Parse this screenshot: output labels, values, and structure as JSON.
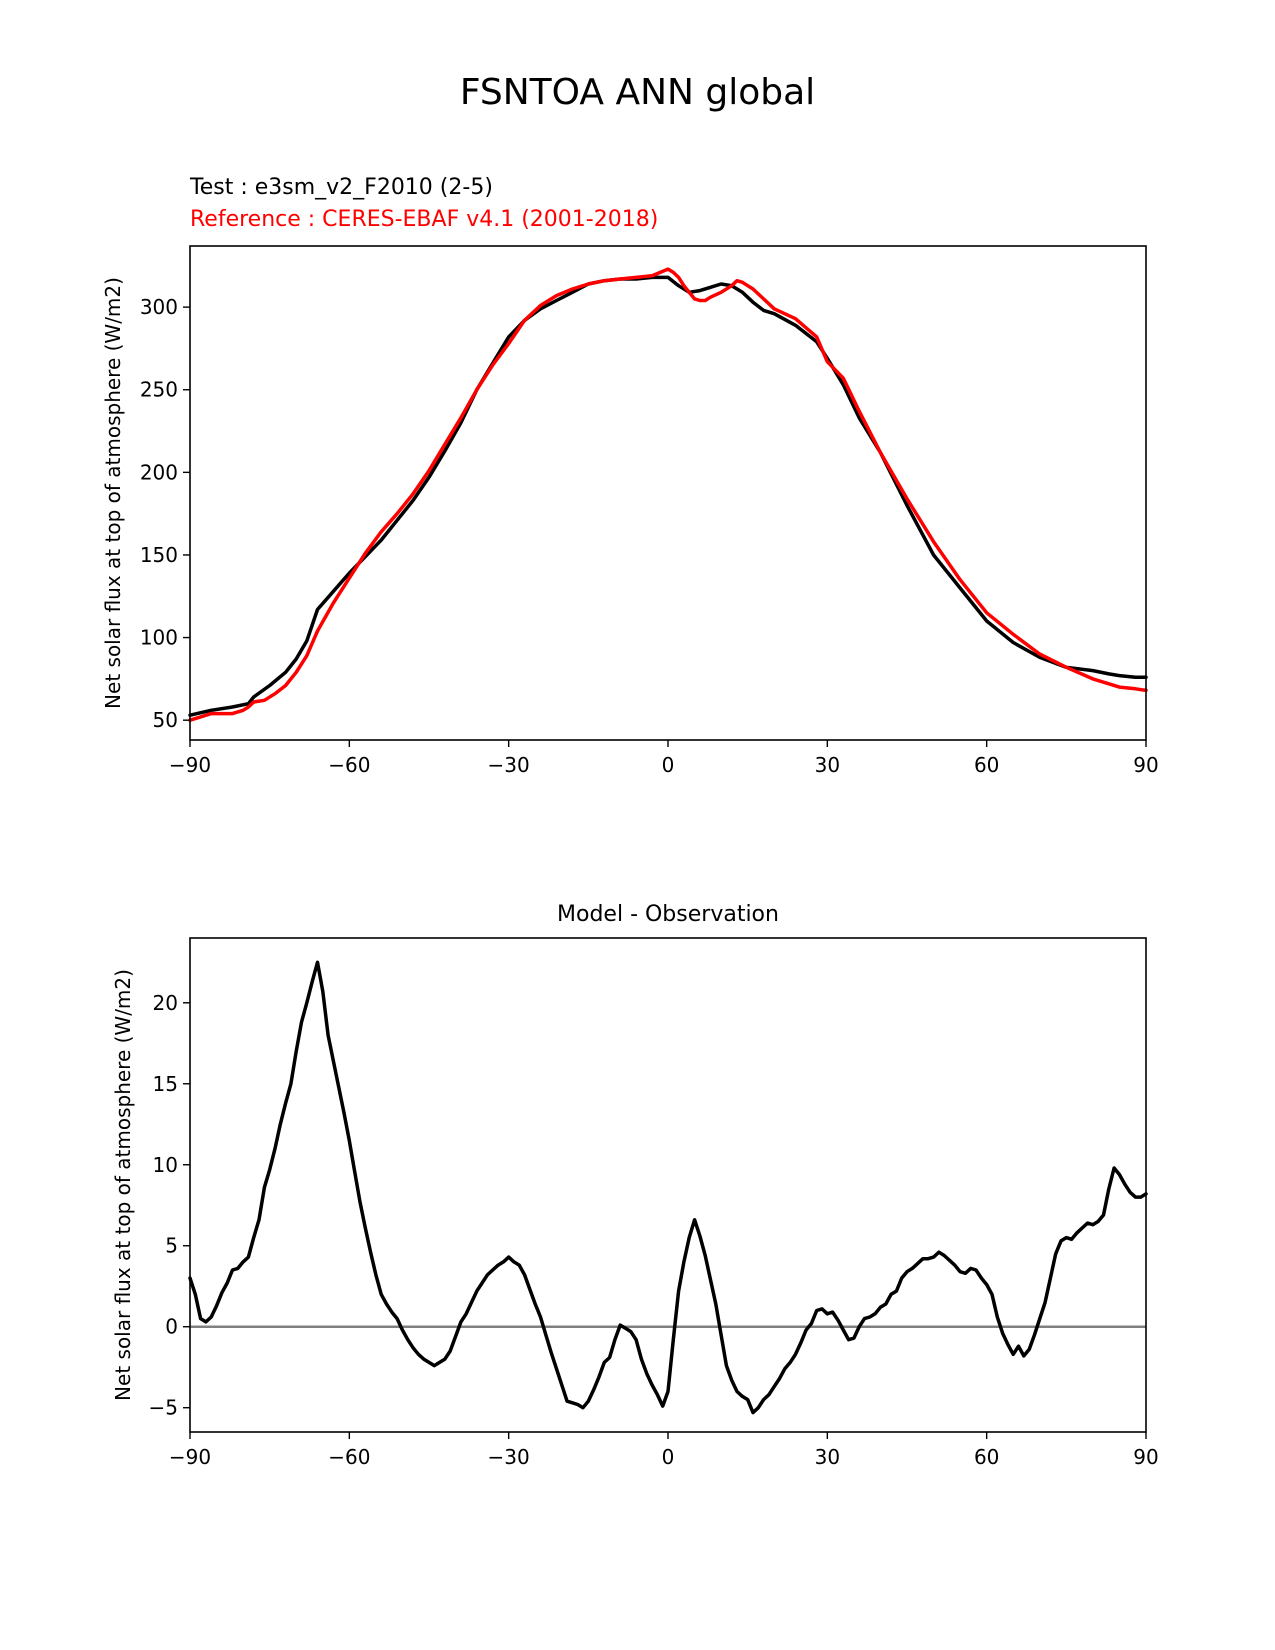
{
  "figure": {
    "title": "FSNTOA ANN global",
    "top_title_test": "Test : e3sm_v2_F2010 (2-5)",
    "top_title_ref": "Reference : CERES-EBAF v4.1 (2001-2018)",
    "bottom_title": "Model - Observation"
  },
  "colors": {
    "test": "#000000",
    "reference": "#ff0000",
    "zero_line": "#808080"
  },
  "chart_data": [
    {
      "type": "line",
      "xlim": [
        -90,
        90
      ],
      "ylim": [
        38,
        337
      ],
      "xticks": [
        -90,
        -60,
        -30,
        0,
        30,
        60,
        90
      ],
      "xtick_labels": [
        "−90",
        "−60",
        "−30",
        "0",
        "30",
        "60",
        "90"
      ],
      "yticks": [
        50,
        100,
        150,
        200,
        250,
        300
      ],
      "ylabel": "Net solar flux at top of atmosphere (W/m2)",
      "series": [
        {
          "name": "Test : e3sm_v2_F2010 (2-5)",
          "color": "#000000",
          "x": [
            -90,
            -86,
            -82,
            -79,
            -78,
            -75,
            -72,
            -70,
            -68,
            -66,
            -63,
            -60,
            -57,
            -54,
            -51,
            -48,
            -45,
            -42,
            -39,
            -36,
            -33,
            -30,
            -27,
            -24,
            -21,
            -18,
            -15,
            -12,
            -9,
            -6,
            -3,
            0,
            2,
            4,
            6,
            8,
            10,
            12,
            14,
            16,
            18,
            20,
            24,
            28,
            30,
            33,
            36,
            40,
            45,
            50,
            55,
            60,
            65,
            70,
            75,
            80,
            83,
            85,
            88,
            90
          ],
          "y": [
            53,
            56,
            58,
            60,
            64,
            71,
            79,
            87,
            98,
            117,
            128,
            139,
            149,
            159,
            171,
            183,
            197,
            213,
            230,
            250,
            266,
            282,
            292,
            299,
            304,
            309,
            314,
            316,
            317,
            317,
            318,
            318,
            313,
            309,
            310,
            312,
            314,
            313,
            309,
            303,
            298,
            296,
            289,
            279,
            269,
            253,
            233,
            212,
            180,
            150,
            130,
            110,
            97,
            88,
            82,
            80,
            78,
            77,
            76,
            76
          ]
        },
        {
          "name": "Reference : CERES-EBAF v4.1 (2001-2018)",
          "color": "#ff0000",
          "x": [
            -90,
            -88,
            -86,
            -84,
            -82,
            -80,
            -79,
            -78,
            -76,
            -74,
            -72,
            -70,
            -68,
            -66,
            -63,
            -60,
            -57,
            -54,
            -51,
            -48,
            -45,
            -42,
            -39,
            -36,
            -33,
            -30,
            -27,
            -24,
            -21,
            -18,
            -15,
            -12,
            -9,
            -6,
            -3,
            0,
            1,
            2,
            3,
            4,
            5,
            6,
            7,
            8,
            10,
            12,
            13,
            14,
            16,
            18,
            20,
            24,
            28,
            30,
            33,
            36,
            40,
            45,
            50,
            55,
            60,
            65,
            70,
            75,
            80,
            83,
            85,
            88,
            90
          ],
          "y": [
            50,
            52,
            54,
            54,
            54,
            56,
            58,
            61,
            62,
            66,
            71,
            79,
            89,
            104,
            121,
            136,
            151,
            164,
            175,
            187,
            201,
            217,
            233,
            250,
            265,
            278,
            292,
            301,
            307,
            311,
            314,
            316,
            317,
            318,
            319,
            323,
            321,
            318,
            313,
            309,
            305,
            304,
            304,
            306,
            309,
            313,
            316,
            315,
            311,
            305,
            299,
            293,
            282,
            267,
            257,
            237,
            212,
            184,
            158,
            135,
            115,
            102,
            90,
            82,
            75,
            72,
            70,
            69,
            68
          ]
        }
      ]
    },
    {
      "type": "line",
      "xlim": [
        -90,
        90
      ],
      "ylim": [
        -6.5,
        24
      ],
      "xticks": [
        -90,
        -60,
        -30,
        0,
        30,
        60,
        90
      ],
      "xtick_labels": [
        "−90",
        "−60",
        "−30",
        "0",
        "30",
        "60",
        "90"
      ],
      "yticks": [
        -5,
        0,
        5,
        10,
        15,
        20
      ],
      "ytick_labels": [
        "−5",
        "0",
        "5",
        "10",
        "15",
        "20"
      ],
      "ylabel": "Net solar flux at top of atmosphere (W/m2)",
      "zero_line": 0,
      "series": [
        {
          "name": "Model - Observation",
          "color": "#000000",
          "x": [
            -90,
            -89,
            -88,
            -87,
            -86,
            -85,
            -84,
            -83,
            -82,
            -81,
            -80,
            -79,
            -78,
            -77,
            -76,
            -75,
            -74,
            -73,
            -72,
            -71,
            -70,
            -69,
            -68,
            -67,
            -66,
            -65,
            -64,
            -63,
            -62,
            -61,
            -60,
            -59,
            -58,
            -57,
            -56,
            -55,
            -54,
            -53,
            -52,
            -51,
            -50,
            -49,
            -48,
            -47,
            -46,
            -45,
            -44,
            -43,
            -42,
            -41,
            -40,
            -39,
            -38,
            -37,
            -36,
            -35,
            -34,
            -33,
            -32,
            -31,
            -30,
            -29,
            -28,
            -27,
            -26,
            -25,
            -24,
            -23,
            -22,
            -21,
            -20,
            -19,
            -18,
            -17,
            -16,
            -15,
            -14,
            -13,
            -12,
            -11,
            -10,
            -9,
            -8,
            -7,
            -6,
            -5,
            -4,
            -3,
            -2,
            -1,
            0,
            1,
            2,
            3,
            4,
            5,
            6,
            7,
            8,
            9,
            10,
            11,
            12,
            13,
            14,
            15,
            16,
            17,
            18,
            19,
            20,
            21,
            22,
            23,
            24,
            25,
            26,
            27,
            28,
            29,
            30,
            31,
            32,
            33,
            34,
            35,
            36,
            37,
            38,
            39,
            40,
            41,
            42,
            43,
            44,
            45,
            46,
            47,
            48,
            49,
            50,
            51,
            52,
            53,
            54,
            55,
            56,
            57,
            58,
            59,
            60,
            61,
            62,
            63,
            64,
            65,
            66,
            67,
            68,
            69,
            70,
            71,
            72,
            73,
            74,
            75,
            76,
            77,
            78,
            79,
            80,
            81,
            82,
            83,
            84,
            85,
            86,
            87,
            88,
            89,
            90
          ],
          "y": [
            3.0,
            2.0,
            0.5,
            0.3,
            0.6,
            1.3,
            2.1,
            2.7,
            3.5,
            3.6,
            4.0,
            4.3,
            5.5,
            6.6,
            8.6,
            9.7,
            11.0,
            12.5,
            13.8,
            15.0,
            17.0,
            18.8,
            20.0,
            21.3,
            22.5,
            20.7,
            18.0,
            16.4,
            14.8,
            13.2,
            11.5,
            9.6,
            7.7,
            6.1,
            4.6,
            3.2,
            2.0,
            1.4,
            0.9,
            0.5,
            -0.2,
            -0.8,
            -1.3,
            -1.7,
            -2.0,
            -2.2,
            -2.4,
            -2.2,
            -2.0,
            -1.5,
            -0.6,
            0.3,
            0.8,
            1.5,
            2.2,
            2.7,
            3.2,
            3.5,
            3.8,
            4.0,
            4.3,
            4.0,
            3.8,
            3.2,
            2.3,
            1.4,
            0.6,
            -0.5,
            -1.6,
            -2.6,
            -3.6,
            -4.6,
            -4.7,
            -4.8,
            -5.0,
            -4.6,
            -3.9,
            -3.1,
            -2.2,
            -1.9,
            -0.8,
            0.1,
            -0.1,
            -0.3,
            -0.8,
            -2.0,
            -2.9,
            -3.6,
            -4.2,
            -4.9,
            -4.0,
            -0.8,
            2.2,
            4.0,
            5.5,
            6.6,
            5.6,
            4.4,
            2.9,
            1.4,
            -0.5,
            -2.4,
            -3.3,
            -4.0,
            -4.3,
            -4.5,
            -5.3,
            -5.0,
            -4.5,
            -4.2,
            -3.7,
            -3.2,
            -2.6,
            -2.2,
            -1.7,
            -1.0,
            -0.2,
            0.2,
            1.0,
            1.1,
            0.8,
            0.9,
            0.4,
            -0.2,
            -0.8,
            -0.7,
            0.0,
            0.5,
            0.6,
            0.8,
            1.2,
            1.4,
            2.0,
            2.2,
            3.0,
            3.4,
            3.6,
            3.9,
            4.2,
            4.2,
            4.3,
            4.6,
            4.4,
            4.1,
            3.8,
            3.4,
            3.3,
            3.6,
            3.5,
            3.0,
            2.6,
            2.0,
            0.6,
            -0.4,
            -1.1,
            -1.7,
            -1.2,
            -1.8,
            -1.4,
            -0.5,
            0.5,
            1.5,
            3.0,
            4.5,
            5.3,
            5.5,
            5.4,
            5.8,
            6.1,
            6.4,
            6.3,
            6.5,
            6.9,
            8.5,
            9.8,
            9.4,
            8.8,
            8.3,
            8.0,
            8.0,
            8.2
          ]
        }
      ]
    }
  ]
}
